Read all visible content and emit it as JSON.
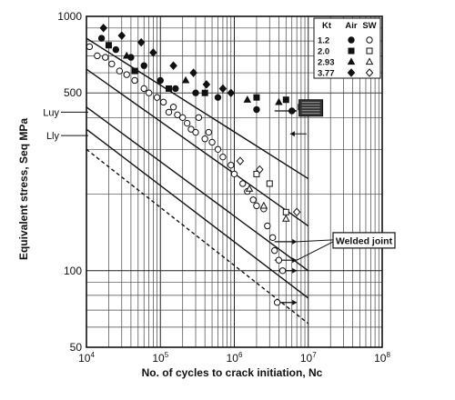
{
  "chart_data": {
    "type": "scatter",
    "title": "",
    "xlabel": "No. of cycles to crack initiation,  Nc",
    "ylabel": "Equivalent stress,  Seq  MPa",
    "xscale": "log",
    "yscale": "log",
    "xlim": [
      10000,
      100000000
    ],
    "ylim": [
      50,
      1000
    ],
    "grid": true,
    "x_ticks": [
      {
        "value": 10000,
        "base": "10",
        "exp": "4"
      },
      {
        "value": 100000,
        "base": "10",
        "exp": "5"
      },
      {
        "value": 1000000,
        "base": "10",
        "exp": "6"
      },
      {
        "value": 10000000,
        "base": "10",
        "exp": "7"
      },
      {
        "value": 100000000,
        "base": "10",
        "exp": "8"
      }
    ],
    "y_ticks": [
      {
        "value": 50,
        "label": "50"
      },
      {
        "value": 100,
        "label": "100"
      },
      {
        "value": 500,
        "label": "500"
      },
      {
        "value": 1000,
        "label": "1000"
      }
    ],
    "reference_levels": [
      {
        "label": "Luy",
        "value": 420
      },
      {
        "label": "Lly",
        "value": 340
      }
    ],
    "legend": {
      "placement": "top-right",
      "headers": [
        "Kt",
        "Air",
        "SW"
      ],
      "rows": [
        {
          "kt": "1.2",
          "air": "filled-circle",
          "sw": "open-circle"
        },
        {
          "kt": "2.0",
          "air": "filled-square",
          "sw": "open-square"
        },
        {
          "kt": "2.93",
          "air": "filled-triangle",
          "sw": "open-triangle"
        },
        {
          "kt": "3.77",
          "air": "filled-diamond",
          "sw": "open-diamond"
        }
      ]
    },
    "annotations": [
      {
        "text": "Welded joint",
        "style": "boxed"
      }
    ],
    "series": [
      {
        "kt": "1.2",
        "environment": "Air",
        "marker": "filled-circle",
        "points": [
          [
            16000,
            820
          ],
          [
            25000,
            740
          ],
          [
            40000,
            690
          ],
          [
            60000,
            640
          ],
          [
            100000,
            560
          ],
          [
            160000,
            520
          ],
          [
            300000,
            500
          ],
          [
            600000,
            480
          ],
          [
            2000000,
            430
          ],
          [
            6000000,
            425
          ]
        ]
      },
      {
        "kt": "1.2",
        "environment": "SW",
        "marker": "open-circle",
        "points": [
          [
            11000,
            760
          ],
          [
            14000,
            700
          ],
          [
            18000,
            690
          ],
          [
            22000,
            650
          ],
          [
            28000,
            610
          ],
          [
            35000,
            590
          ],
          [
            45000,
            560
          ],
          [
            60000,
            520
          ],
          [
            70000,
            500
          ],
          [
            90000,
            480
          ],
          [
            110000,
            460
          ],
          [
            130000,
            420
          ],
          [
            150000,
            440
          ],
          [
            170000,
            410
          ],
          [
            200000,
            400
          ],
          [
            230000,
            380
          ],
          [
            260000,
            360
          ],
          [
            300000,
            350
          ],
          [
            330000,
            400
          ],
          [
            400000,
            330
          ],
          [
            450000,
            350
          ],
          [
            500000,
            320
          ],
          [
            600000,
            300
          ],
          [
            700000,
            280
          ],
          [
            900000,
            260
          ],
          [
            1000000,
            240
          ],
          [
            1300000,
            220
          ],
          [
            1500000,
            205
          ],
          [
            1800000,
            190
          ],
          [
            2000000,
            180
          ],
          [
            2500000,
            175
          ],
          [
            2800000,
            150
          ],
          [
            3300000,
            135
          ],
          [
            3500000,
            120
          ],
          [
            4000000,
            110
          ],
          [
            4500000,
            100
          ],
          [
            3800000,
            75
          ]
        ]
      },
      {
        "kt": "2.0",
        "environment": "Air",
        "marker": "filled-square",
        "points": [
          [
            20000,
            770
          ],
          [
            45000,
            610
          ],
          [
            130000,
            520
          ],
          [
            400000,
            500
          ],
          [
            2000000,
            480
          ],
          [
            5000000,
            470
          ],
          [
            8000000,
            440
          ]
        ]
      },
      {
        "kt": "2.0",
        "environment": "SW",
        "marker": "open-square",
        "points": [
          [
            2000000,
            240
          ],
          [
            3000000,
            220
          ],
          [
            5000000,
            170
          ]
        ]
      },
      {
        "kt": "2.93",
        "environment": "Air",
        "marker": "filled-triangle",
        "points": [
          [
            35000,
            700
          ],
          [
            220000,
            560
          ],
          [
            1500000,
            470
          ],
          [
            4000000,
            460
          ]
        ]
      },
      {
        "kt": "2.93",
        "environment": "SW",
        "marker": "open-triangle",
        "points": [
          [
            1600000,
            210
          ],
          [
            2500000,
            180
          ],
          [
            5000000,
            160
          ]
        ]
      },
      {
        "kt": "3.77",
        "environment": "Air",
        "marker": "filled-diamond",
        "points": [
          [
            17000,
            900
          ],
          [
            30000,
            840
          ],
          [
            55000,
            790
          ],
          [
            80000,
            720
          ],
          [
            150000,
            640
          ],
          [
            280000,
            600
          ],
          [
            420000,
            540
          ],
          [
            700000,
            520
          ],
          [
            900000,
            500
          ]
        ]
      },
      {
        "kt": "3.77",
        "environment": "SW",
        "marker": "open-diamond",
        "points": [
          [
            1200000,
            270
          ],
          [
            2200000,
            250
          ],
          [
            7000000,
            170
          ]
        ]
      }
    ],
    "fit_lines": [
      {
        "name": "upper",
        "style": "solid",
        "points": [
          [
            10000,
            820
          ],
          [
            10000000,
            230
          ]
        ]
      },
      {
        "name": "middle",
        "style": "solid",
        "points": [
          [
            10000,
            620
          ],
          [
            10000000,
            150
          ]
        ]
      },
      {
        "name": "lower-1",
        "style": "solid",
        "points": [
          [
            10000,
            440
          ],
          [
            10000000,
            100
          ]
        ]
      },
      {
        "name": "lower-2",
        "style": "solid",
        "points": [
          [
            10000,
            360
          ],
          [
            10000000,
            78
          ]
        ]
      },
      {
        "name": "lower-3",
        "style": "dashed",
        "points": [
          [
            10000,
            300
          ],
          [
            10000000,
            62
          ]
        ]
      }
    ],
    "runout_levels": [
      {
        "x_start": 3500000,
        "x_end": 7000000,
        "y": 425
      },
      {
        "x_start": 3500000,
        "x_end": 7000000,
        "y": 130
      },
      {
        "x_start": 3500000,
        "x_end": 7000000,
        "y": 110
      },
      {
        "x_start": 4000000,
        "x_end": 7000000,
        "y": 100
      },
      {
        "x_start": 3500000,
        "x_end": 7000000,
        "y": 75
      }
    ]
  }
}
